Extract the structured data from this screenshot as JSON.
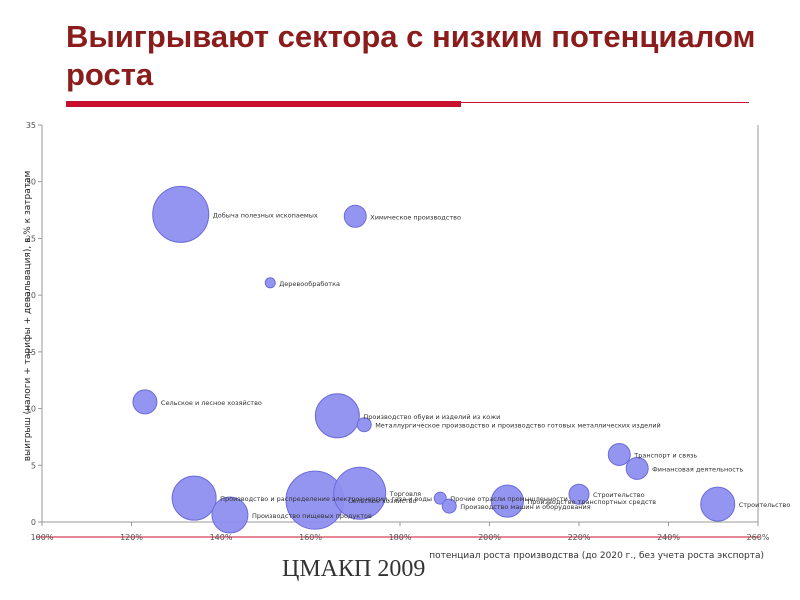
{
  "slide": {
    "title": "Выигрывают сектора с низким потенциалом роста",
    "footer": "ЦМАКП 2009"
  },
  "colors": {
    "title": "#8b1c1c",
    "accent": "#c8102e",
    "bubble": "#8e8ef0",
    "bubble_stroke": "#6c6cd8"
  },
  "chart_data": {
    "type": "scatter",
    "subtype": "bubble",
    "xlabel": "потенциал роста производства (до 2020 г., без учета роста экспорта)",
    "ylabel": "выигрыш (налоги + тарифы + девальвация), в % к затратам",
    "x_ticks": [
      "100%",
      "120%",
      "140%",
      "160%",
      "180%",
      "200%",
      "220%",
      "240%",
      "260%"
    ],
    "y_ticks": [
      "0",
      "5",
      "10",
      "15",
      "20",
      "25",
      "30",
      "35"
    ],
    "xlim": [
      1.0,
      2.6
    ],
    "ylim": [
      -5,
      35
    ],
    "grid": false,
    "points": [
      {
        "x": 1.31,
        "y": 26.0,
        "size": 28,
        "label": "Добыча полезных ископаемых"
      },
      {
        "x": 1.7,
        "y": 25.8,
        "size": 11,
        "label": "Химическое производство"
      },
      {
        "x": 1.51,
        "y": 19.1,
        "size": 5,
        "label": "Деревообработка"
      },
      {
        "x": 1.23,
        "y": 7.1,
        "size": 12,
        "label": "Сельское и лесное хозяйство"
      },
      {
        "x": 1.66,
        "y": 5.7,
        "size": 22,
        "label": "Производство обуви и изделий из кожи"
      },
      {
        "x": 1.72,
        "y": 4.8,
        "size": 7,
        "label": "Металлургическое производство и производство готовых металлических изделий"
      },
      {
        "x": 1.34,
        "y": -2.6,
        "size": 22,
        "label": "Производство и распределение электроэнергии, газа и воды"
      },
      {
        "x": 1.42,
        "y": -4.3,
        "size": 18,
        "label": "Производство пищевых продуктов"
      },
      {
        "x": 1.61,
        "y": -2.8,
        "size": 29,
        "label": "Сельское хозяйство"
      },
      {
        "x": 1.71,
        "y": -2.1,
        "size": 26,
        "label": "Торговля"
      },
      {
        "x": 1.89,
        "y": -2.6,
        "size": 6,
        "label": "Прочие отрасли промышленности"
      },
      {
        "x": 1.91,
        "y": -3.4,
        "size": 7,
        "label": "Производство машин и оборудования"
      },
      {
        "x": 2.04,
        "y": -2.9,
        "size": 16,
        "label": "Производство транспортных средств"
      },
      {
        "x": 2.2,
        "y": -2.2,
        "size": 10,
        "label": "Строительство"
      },
      {
        "x": 2.29,
        "y": 1.8,
        "size": 11,
        "label": "Транспорт и связь"
      },
      {
        "x": 2.33,
        "y": 0.4,
        "size": 11,
        "label": "Финансовая деятельность"
      },
      {
        "x": 2.51,
        "y": -3.2,
        "size": 17,
        "label": "Строительство"
      }
    ]
  }
}
